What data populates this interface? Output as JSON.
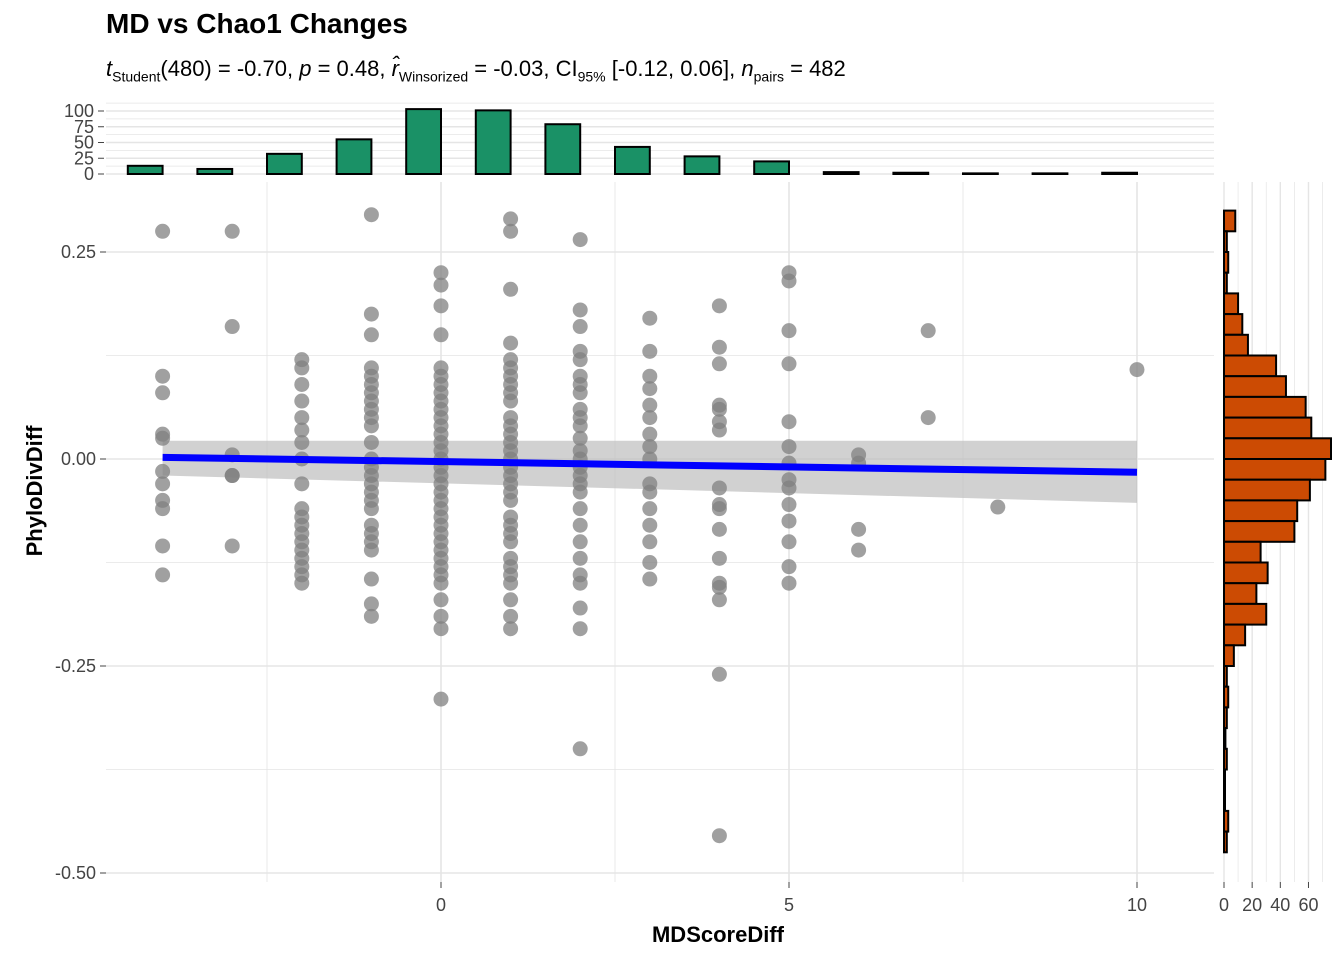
{
  "chart_data": {
    "type": "scatter",
    "title": "MD vs Chao1 Changes",
    "subtitle": {
      "t_label": "t",
      "t_sub": "Student",
      "t_value": "(480) = -0.70, ",
      "p_label": "p",
      "p_value": " = 0.48, ",
      "r_label": "r̂",
      "r_sub": "Winsorized",
      "r_value": " = -0.03, CI",
      "ci_sub": "95%",
      "ci_value": " [-0.12, 0.06], ",
      "n_label": "n",
      "n_sub": "pairs",
      "n_value": " = 482"
    },
    "xlabel": "MDScoreDiff",
    "ylabel": "PhyloDivDiff",
    "xlim": [
      -4.8,
      11.1
    ],
    "ylim": [
      -0.51,
      0.32
    ],
    "xticks": [
      0,
      5,
      10
    ],
    "xtick_labels": [
      "0",
      "5",
      "10"
    ],
    "yticks": [
      0.25,
      0.0,
      -0.25,
      -0.5
    ],
    "ytick_labels": [
      "0.25",
      "0.00",
      "-0.25",
      "-0.50"
    ],
    "grid": true,
    "points": [
      {
        "x": -4,
        "y": [
          0.275,
          0.1,
          0.08,
          0.03,
          0.025,
          -0.015,
          -0.03,
          -0.05,
          -0.06,
          -0.105,
          -0.14
        ]
      },
      {
        "x": -3,
        "y": [
          0.275,
          0.16,
          0.005,
          -0.02,
          -0.02,
          -0.105
        ]
      },
      {
        "x": -2,
        "y": [
          0.12,
          0.11,
          0.09,
          0.07,
          0.05,
          0.035,
          0.02,
          0.0,
          -0.03,
          -0.06,
          -0.07,
          -0.08,
          -0.09,
          -0.1,
          -0.11,
          -0.12,
          -0.13,
          -0.14,
          -0.15
        ]
      },
      {
        "x": -1,
        "y": [
          0.295,
          0.175,
          0.15,
          0.11,
          0.1,
          0.09,
          0.08,
          0.07,
          0.06,
          0.05,
          0.04,
          0.02,
          0.0,
          -0.01,
          -0.02,
          -0.03,
          -0.04,
          -0.05,
          -0.06,
          -0.08,
          -0.09,
          -0.1,
          -0.11,
          -0.145,
          -0.175,
          -0.19
        ]
      },
      {
        "x": 0,
        "y": [
          0.225,
          0.21,
          0.185,
          0.15,
          0.11,
          0.1,
          0.09,
          0.08,
          0.07,
          0.06,
          0.05,
          0.04,
          0.03,
          0.02,
          0.01,
          0.0,
          -0.01,
          -0.02,
          -0.03,
          -0.04,
          -0.05,
          -0.06,
          -0.07,
          -0.08,
          -0.09,
          -0.1,
          -0.11,
          -0.12,
          -0.13,
          -0.14,
          -0.15,
          -0.17,
          -0.19,
          -0.205,
          -0.29
        ]
      },
      {
        "x": 1,
        "y": [
          0.29,
          0.275,
          0.205,
          0.14,
          0.12,
          0.11,
          0.1,
          0.09,
          0.08,
          0.07,
          0.05,
          0.04,
          0.03,
          0.02,
          0.01,
          0.0,
          -0.01,
          -0.02,
          -0.03,
          -0.04,
          -0.05,
          -0.07,
          -0.08,
          -0.09,
          -0.1,
          -0.12,
          -0.13,
          -0.14,
          -0.15,
          -0.17,
          -0.19,
          -0.205
        ]
      },
      {
        "x": 2,
        "y": [
          0.265,
          0.18,
          0.16,
          0.13,
          0.12,
          0.1,
          0.09,
          0.08,
          0.06,
          0.05,
          0.04,
          0.025,
          0.01,
          0.0,
          -0.01,
          -0.02,
          -0.03,
          -0.04,
          -0.06,
          -0.08,
          -0.1,
          -0.12,
          -0.14,
          -0.15,
          -0.18,
          -0.205,
          -0.35
        ]
      },
      {
        "x": 3,
        "y": [
          0.17,
          0.13,
          0.1,
          0.085,
          0.065,
          0.05,
          0.03,
          0.015,
          0.0,
          -0.03,
          -0.04,
          -0.06,
          -0.08,
          -0.1,
          -0.125,
          -0.145
        ]
      },
      {
        "x": 4,
        "y": [
          0.185,
          0.135,
          0.115,
          0.065,
          0.06,
          0.045,
          0.035,
          -0.035,
          -0.055,
          -0.06,
          -0.085,
          -0.12,
          -0.15,
          -0.155,
          -0.17,
          -0.26,
          -0.455
        ]
      },
      {
        "x": 5,
        "y": [
          0.225,
          0.215,
          0.155,
          0.115,
          0.045,
          0.015,
          -0.005,
          -0.025,
          -0.035,
          -0.055,
          -0.075,
          -0.1,
          -0.13,
          -0.15
        ]
      },
      {
        "x": 6,
        "y": [
          0.005,
          -0.005,
          -0.085,
          -0.11
        ]
      },
      {
        "x": 7,
        "y": [
          0.155,
          0.05
        ]
      },
      {
        "x": 8,
        "y": [
          -0.058
        ]
      },
      {
        "x": 10,
        "y": [
          0.108
        ]
      }
    ],
    "regression": {
      "x_start": -4,
      "y_start": 0.002,
      "x_end": 10,
      "y_end": -0.016,
      "ci_start": [
        -0.02,
        0.022
      ],
      "ci_end": [
        -0.053,
        0.022
      ]
    },
    "top_histogram": {
      "bin_centers": [
        -4,
        -3,
        -2,
        -1,
        0,
        1,
        2,
        3,
        4,
        5,
        6,
        7,
        8,
        9,
        10
      ],
      "counts": [
        13,
        8,
        32,
        55,
        103,
        101,
        79,
        43,
        28,
        20,
        3,
        2,
        1,
        1,
        2
      ],
      "ylim": [
        0,
        100
      ],
      "yticks": [
        0,
        25,
        50,
        75,
        100
      ],
      "ytick_labels": [
        "0",
        "25",
        "50",
        "75",
        "100"
      ]
    },
    "right_histogram": {
      "bin_edges": [
        0.3,
        0.275,
        0.25,
        0.225,
        0.2,
        0.175,
        0.15,
        0.125,
        0.1,
        0.075,
        0.05,
        0.025,
        0.0,
        -0.025,
        -0.05,
        -0.075,
        -0.1,
        -0.125,
        -0.15,
        -0.175,
        -0.2,
        -0.225,
        -0.25,
        -0.275,
        -0.3,
        -0.325,
        -0.35,
        -0.375,
        -0.4,
        -0.425,
        -0.45,
        -0.475
      ],
      "counts": [
        8,
        2,
        3,
        2,
        10,
        13,
        17,
        37,
        44,
        58,
        62,
        76,
        72,
        61,
        52,
        50,
        26,
        31,
        23,
        30,
        15,
        7,
        2,
        3,
        2,
        1,
        2,
        0,
        0,
        3,
        2
      ],
      "xlim": [
        0,
        76
      ],
      "xticks": [
        0,
        20,
        40,
        60
      ],
      "xtick_labels": [
        "0",
        "20",
        "40",
        "60"
      ]
    },
    "colors": {
      "points": "#808080",
      "regression_line": "#0000ff",
      "ci_band": "#bebebe",
      "top_hist_fill": "#1a9166",
      "right_hist_fill": "#cc4b03",
      "grid": "#e5e5e5"
    }
  }
}
